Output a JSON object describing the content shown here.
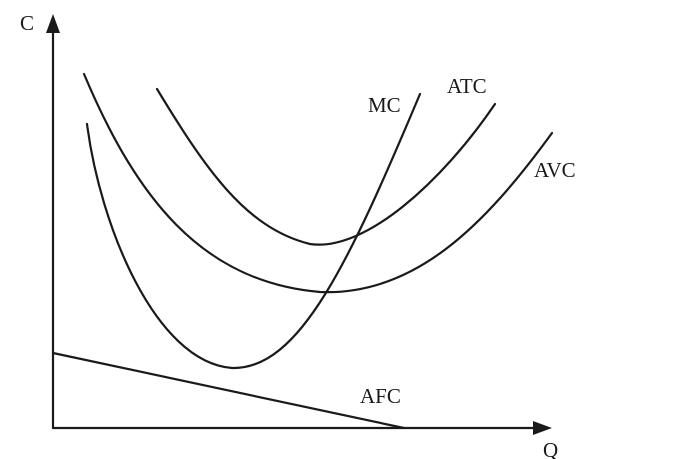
{
  "axes": {
    "y_label": "C",
    "x_label": "Q"
  },
  "curves": {
    "mc": {
      "label": "MC"
    },
    "atc": {
      "label": "ATC"
    },
    "avc": {
      "label": "AVC"
    },
    "afc": {
      "label": "AFC"
    }
  },
  "colors": {
    "ink": "#1a1a1a",
    "background": "#ffffff"
  }
}
